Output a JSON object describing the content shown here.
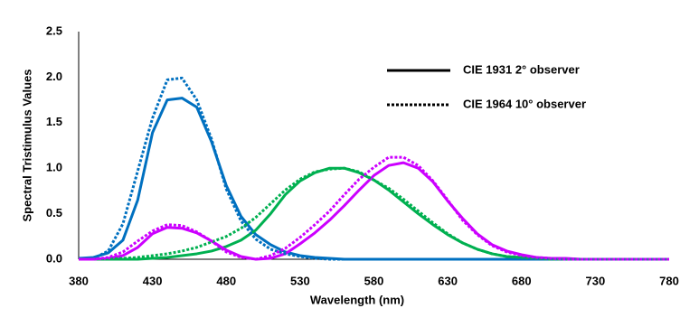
{
  "chart_data": {
    "type": "line",
    "xlabel": "Wavelength (nm)",
    "ylabel": "Spectral Tristimulus Values",
    "x": [
      380,
      390,
      400,
      410,
      420,
      430,
      440,
      450,
      460,
      470,
      480,
      490,
      500,
      510,
      520,
      530,
      540,
      550,
      560,
      570,
      580,
      590,
      600,
      610,
      620,
      630,
      640,
      650,
      660,
      670,
      680,
      690,
      700,
      710,
      720,
      730,
      740,
      750,
      760,
      770,
      780
    ],
    "xlim": [
      380,
      780
    ],
    "xticks": [
      380,
      430,
      480,
      530,
      580,
      630,
      680,
      730,
      780
    ],
    "ylim": [
      0,
      2.5
    ],
    "yticks": [
      {
        "value": 0,
        "label": "0.0"
      },
      0.5,
      {
        "value": 1,
        "label": "1.0"
      },
      1.5,
      {
        "value": 2,
        "label": "2.0"
      },
      2.5
    ],
    "series": [
      {
        "name": "CIE 1931 2° observer",
        "dash": "solid",
        "curves": [
          {
            "color": "#0070c0",
            "values": [
              0.01,
              0.02,
              0.07,
              0.21,
              0.65,
              1.39,
              1.75,
              1.77,
              1.67,
              1.29,
              0.81,
              0.47,
              0.27,
              0.16,
              0.08,
              0.04,
              0.02,
              0.01,
              0,
              0,
              0,
              0,
              0,
              0,
              0,
              0,
              0,
              0,
              0,
              0,
              0,
              0,
              0,
              0,
              0,
              0,
              0,
              0,
              0,
              0,
              0
            ]
          },
          {
            "color": "#00b050",
            "values": [
              0,
              0,
              0,
              0,
              0,
              0.01,
              0.02,
              0.04,
              0.06,
              0.09,
              0.14,
              0.21,
              0.32,
              0.5,
              0.71,
              0.86,
              0.95,
              1,
              1,
              0.95,
              0.87,
              0.76,
              0.63,
              0.5,
              0.38,
              0.27,
              0.18,
              0.11,
              0.06,
              0.03,
              0.02,
              0.01,
              0,
              0,
              0,
              0,
              0,
              0,
              0,
              0,
              0
            ]
          },
          {
            "color": "#cc00ff",
            "values": [
              0,
              0,
              0.01,
              0.04,
              0.13,
              0.28,
              0.35,
              0.34,
              0.29,
              0.2,
              0.1,
              0.03,
              0,
              0.01,
              0.06,
              0.17,
              0.29,
              0.43,
              0.59,
              0.76,
              0.92,
              1.03,
              1.06,
              1,
              0.85,
              0.64,
              0.45,
              0.28,
              0.16,
              0.09,
              0.05,
              0.02,
              0.01,
              0.01,
              0,
              0,
              0,
              0,
              0,
              0,
              0
            ]
          }
        ]
      },
      {
        "name": "CIE 1964 10° observer",
        "dash": "dotted",
        "curves": [
          {
            "color": "#0070c0",
            "values": [
              0,
              0.01,
              0.09,
              0.39,
              0.97,
              1.55,
              1.97,
              1.99,
              1.75,
              1.32,
              0.77,
              0.42,
              0.22,
              0.11,
              0.06,
              0.03,
              0.01,
              0,
              0,
              0,
              0,
              0,
              0,
              0,
              0,
              0,
              0,
              0,
              0,
              0,
              0,
              0,
              0,
              0,
              0,
              0,
              0,
              0,
              0,
              0,
              0
            ]
          },
          {
            "color": "#00b050",
            "values": [
              0,
              0,
              0,
              0.01,
              0.02,
              0.04,
              0.06,
              0.09,
              0.13,
              0.19,
              0.25,
              0.34,
              0.46,
              0.61,
              0.76,
              0.88,
              0.96,
              0.99,
              1,
              0.96,
              0.87,
              0.78,
              0.66,
              0.53,
              0.4,
              0.28,
              0.18,
              0.11,
              0.06,
              0.03,
              0.02,
              0.01,
              0,
              0,
              0,
              0,
              0,
              0,
              0,
              0,
              0
            ]
          },
          {
            "color": "#cc00ff",
            "values": [
              0,
              0,
              0.02,
              0.08,
              0.2,
              0.31,
              0.38,
              0.37,
              0.3,
              0.2,
              0.08,
              0.02,
              0,
              0.04,
              0.12,
              0.24,
              0.38,
              0.53,
              0.71,
              0.88,
              1.01,
              1.12,
              1.12,
              1.03,
              0.86,
              0.65,
              0.43,
              0.27,
              0.15,
              0.08,
              0.04,
              0.02,
              0.01,
              0,
              0,
              0,
              0,
              0,
              0,
              0,
              0
            ]
          }
        ]
      }
    ]
  }
}
